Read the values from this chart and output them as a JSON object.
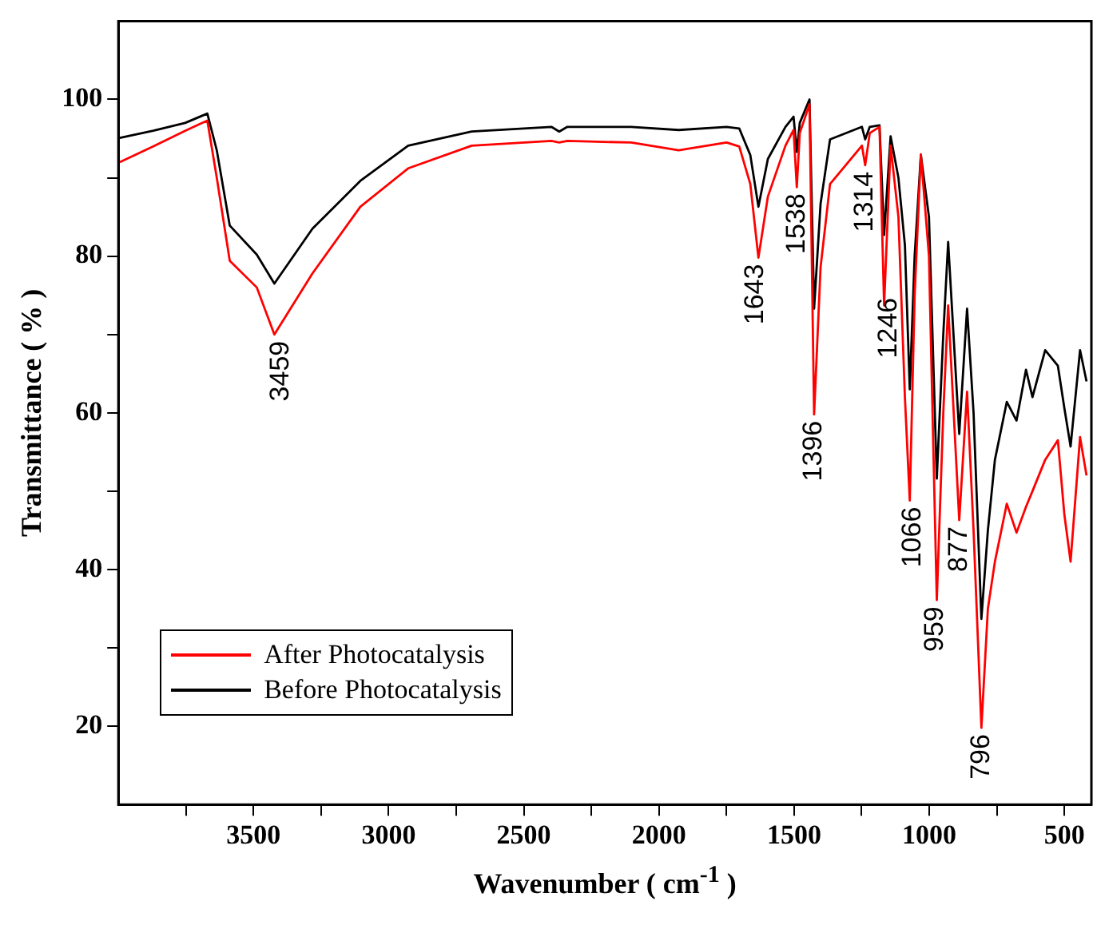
{
  "chart_data": {
    "type": "line",
    "xlabel": "Wavenumber ( cm$^{-1}$ )",
    "ylabel": "Transmittance ( % )",
    "xlim": [
      4000,
      400
    ],
    "xticks": [
      {
        "value": 3750,
        "label": null
      },
      3500,
      {
        "value": 3250,
        "label": null
      },
      3000,
      {
        "value": 2750,
        "label": null
      },
      2500,
      {
        "value": 2250,
        "label": null
      },
      2000,
      {
        "value": 1750,
        "label": null
      },
      1500,
      {
        "value": 1250,
        "label": null
      },
      1000,
      {
        "value": 750,
        "label": null
      },
      500
    ],
    "ylim": [
      10,
      110
    ],
    "yticks": [
      20,
      {
        "value": 30,
        "label": null
      },
      40,
      {
        "value": 50,
        "label": null
      },
      60,
      {
        "value": 70,
        "label": null
      },
      80,
      {
        "value": 90,
        "label": null
      },
      100
    ],
    "x": [
      3995,
      3871,
      3753,
      3671,
      3636,
      3588,
      3488,
      3423,
      3282,
      3105,
      2928,
      2693,
      2398,
      2369,
      2339,
      2103,
      1927,
      1750,
      1703,
      1662,
      1632,
      1597,
      1532,
      1502,
      1490,
      1479,
      1443,
      1426,
      1402,
      1367,
      1249,
      1237,
      1220,
      1184,
      1167,
      1143,
      1114,
      1090,
      1072,
      1054,
      1031,
      1001,
      972,
      948,
      930,
      889,
      860,
      836,
      807,
      783,
      757,
      713,
      677,
      642,
      618,
      571,
      524,
      500,
      477,
      442,
      418
    ],
    "series": [
      {
        "name": "After Photocatalysis",
        "color": "#ff0000",
        "values": [
          92,
          94,
          96,
          97.3,
          90,
          79.4,
          76,
          70,
          77.8,
          86.3,
          91.2,
          94.1,
          94.7,
          94.5,
          94.7,
          94.5,
          93.5,
          94.5,
          94,
          89.2,
          79.8,
          87.6,
          94.1,
          96.1,
          88.8,
          95.7,
          99.4,
          59.8,
          78.6,
          89.2,
          94.1,
          91.6,
          95.7,
          96.5,
          73.7,
          94.1,
          85,
          62,
          48.8,
          75,
          93,
          80,
          36.1,
          60,
          73.7,
          46.3,
          62.7,
          45,
          19.8,
          35,
          41,
          48.4,
          44.7,
          48,
          50,
          54,
          56.5,
          47,
          41,
          56.9,
          52
        ]
      },
      {
        "name": "Before Photocatalysis",
        "color": "#000000",
        "values": [
          95.1,
          96,
          97,
          98.2,
          93.5,
          83.9,
          80.2,
          76.5,
          83.5,
          89.6,
          94.1,
          95.9,
          96.5,
          95.9,
          96.5,
          96.5,
          96.1,
          96.5,
          96.3,
          92.9,
          86.3,
          92.4,
          96.5,
          97.8,
          93.3,
          97,
          100,
          73.3,
          86.7,
          94.9,
          96.5,
          94.9,
          96.5,
          96.7,
          82.7,
          95.3,
          90,
          81.4,
          63,
          80,
          92.9,
          85,
          51.6,
          70,
          81.8,
          57.3,
          73.3,
          60,
          33.7,
          45,
          54,
          61.4,
          59,
          65.5,
          62,
          68,
          66,
          60.6,
          55.7,
          68,
          64
        ]
      }
    ],
    "annotations": [
      {
        "text": "3459",
        "x": 3400,
        "y": 70
      },
      {
        "text": "1643",
        "x": 1644,
        "y": 79.8
      },
      {
        "text": "1538",
        "x": 1490,
        "y": 88.8
      },
      {
        "text": "1396",
        "x": 1426,
        "y": 59.8
      },
      {
        "text": "1314",
        "x": 1237,
        "y": 91.6
      },
      {
        "text": "1246",
        "x": 1149,
        "y": 75.5
      },
      {
        "text": "1066",
        "x": 1060,
        "y": 48.8
      },
      {
        "text": "959",
        "x": 978,
        "y": 36.1
      },
      {
        "text": "877",
        "x": 889,
        "y": 46.3
      },
      {
        "text": "796",
        "x": 807,
        "y": 19.8
      }
    ],
    "legend": "bottom left",
    "grid": false,
    "marker": "none",
    "line_style": "solid"
  }
}
